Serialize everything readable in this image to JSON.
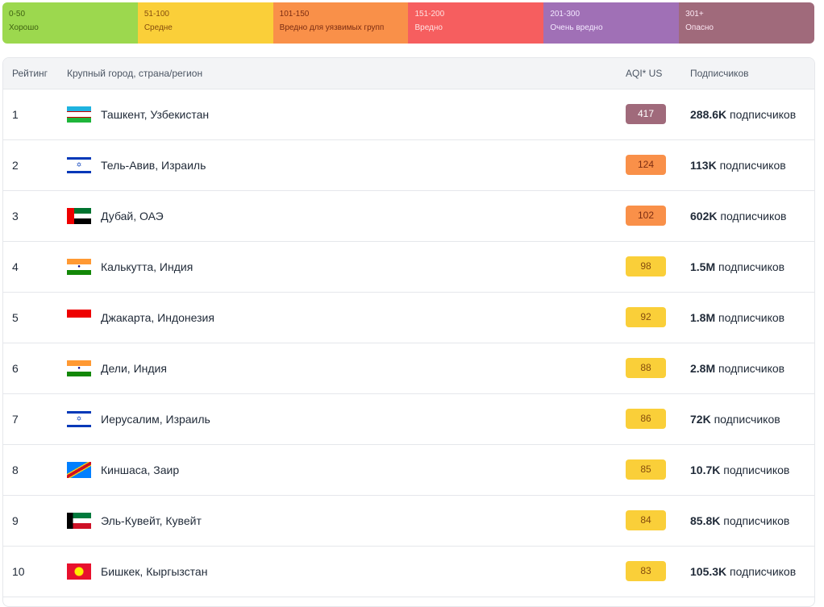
{
  "legend": [
    {
      "range": "0-50",
      "label": "Хорошо",
      "color": "#9cd84e",
      "text": "#3f6212"
    },
    {
      "range": "51-100",
      "label": "Средне",
      "color": "#facf39",
      "text": "#854d0e"
    },
    {
      "range": "101-150",
      "label": "Вредно для уязвимых групп",
      "color": "#f99049",
      "text": "#7c2d12"
    },
    {
      "range": "151-200",
      "label": "Вредно",
      "color": "#f65e5f",
      "text": "#fee2e2"
    },
    {
      "range": "201-300",
      "label": "Очень вредно",
      "color": "#a070b6",
      "text": "#f3e8ff"
    },
    {
      "range": "301+",
      "label": "Опасно",
      "color": "#a06a7b",
      "text": "#fce7f3"
    }
  ],
  "table": {
    "headers": {
      "rank": "Рейтинг",
      "city": "Крупный город, страна/регион",
      "aqi": "AQI* US",
      "subs": "Подписчиков"
    },
    "subs_suffix": " подписчиков",
    "rows": [
      {
        "rank": "1",
        "city": "Ташкент, Узбекистан",
        "flag": "uzbekistan",
        "aqi": "417",
        "subs": "288.6K"
      },
      {
        "rank": "2",
        "city": "Тель-Авив, Израиль",
        "flag": "israel",
        "aqi": "124",
        "subs": "113K"
      },
      {
        "rank": "3",
        "city": "Дубай, ОАЭ",
        "flag": "uae",
        "aqi": "102",
        "subs": "602K"
      },
      {
        "rank": "4",
        "city": "Калькутта, Индия",
        "flag": "india",
        "aqi": "98",
        "subs": "1.5M"
      },
      {
        "rank": "5",
        "city": "Джакарта, Индонезия",
        "flag": "indonesia",
        "aqi": "92",
        "subs": "1.8M"
      },
      {
        "rank": "6",
        "city": "Дели, Индия",
        "flag": "india",
        "aqi": "88",
        "subs": "2.8M"
      },
      {
        "rank": "7",
        "city": "Иерусалим, Израиль",
        "flag": "israel",
        "aqi": "86",
        "subs": "72K"
      },
      {
        "rank": "8",
        "city": "Киншаса, Заир",
        "flag": "dr-congo",
        "aqi": "85",
        "subs": "10.7K"
      },
      {
        "rank": "9",
        "city": "Эль-Кувейт, Кувейт",
        "flag": "kuwait",
        "aqi": "84",
        "subs": "85.8K"
      },
      {
        "rank": "10",
        "city": "Бишкек, Кыргызстан",
        "flag": "kyrgyzstan",
        "aqi": "83",
        "subs": "105.3K"
      }
    ]
  }
}
